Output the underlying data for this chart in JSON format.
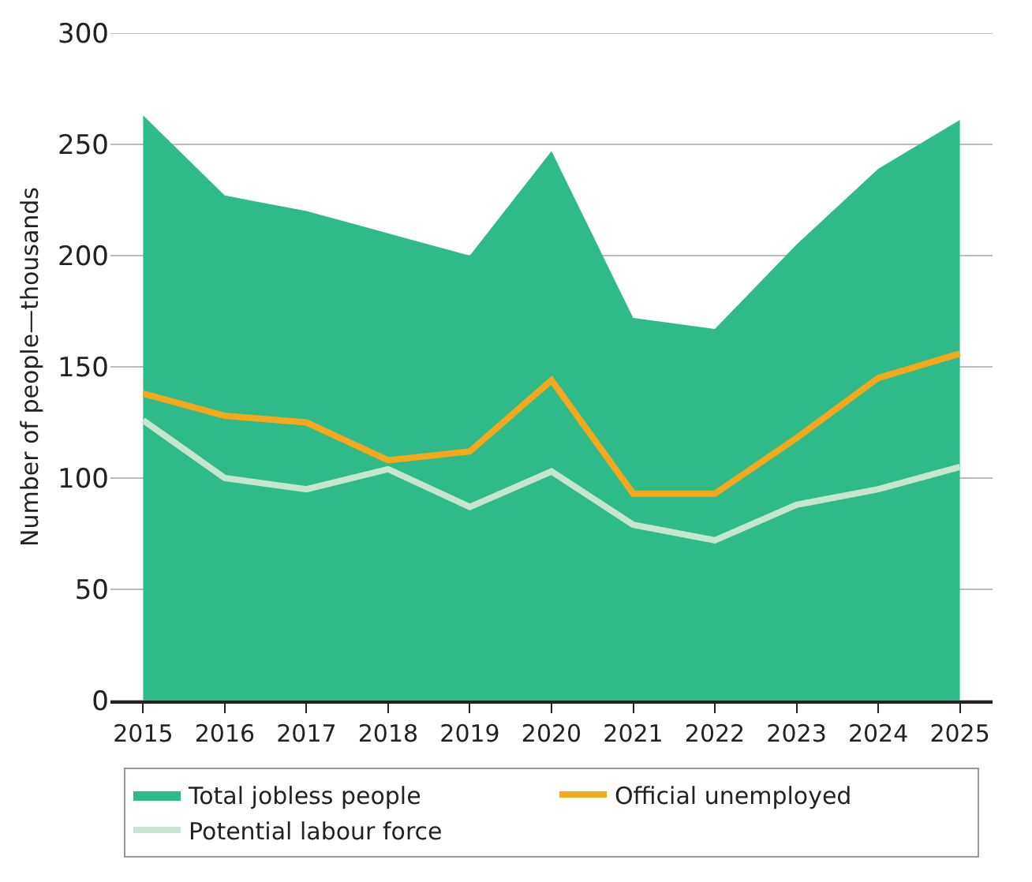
{
  "chart_data": {
    "type": "line",
    "ylabel": "Number of people—thousands",
    "categories": [
      "2015",
      "2016",
      "2017",
      "2018",
      "2019",
      "2020",
      "2021",
      "2022",
      "2023",
      "2024",
      "2025"
    ],
    "series": [
      {
        "name": "Total jobless people",
        "type": "area",
        "color": "#2fba8a",
        "values": [
          263,
          227,
          220,
          210,
          200,
          247,
          172,
          167,
          205,
          239,
          261
        ]
      },
      {
        "name": "Official unemployed",
        "color": "#f5a81c",
        "values": [
          138,
          128,
          125,
          108,
          112,
          144,
          93,
          93,
          118,
          145,
          156
        ]
      },
      {
        "name": "Potential labour force",
        "color": "#c8e6cf",
        "values": [
          126,
          100,
          95,
          104,
          87,
          103,
          79,
          72,
          88,
          95,
          105
        ]
      }
    ],
    "ylim": [
      0,
      300
    ],
    "yticks": [
      0,
      50,
      100,
      150,
      200,
      250,
      300
    ],
    "grid": "y",
    "legend": "bottom",
    "marker": "none",
    "line_style": "solid"
  }
}
